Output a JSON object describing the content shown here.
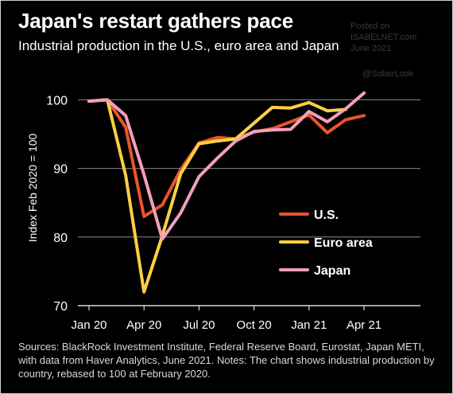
{
  "title": "Japan's restart gathers pace",
  "subtitle": "Industrial production in the U.S., euro area and Japan",
  "watermark": {
    "line1": "Posted on",
    "line2": "ISABELNET.com",
    "line3": "June 2021",
    "handle": "@SoberLook"
  },
  "footnote": "Sources: BlackRock Investment Institute, Federal Reserve Board, Eurostat, Japan METI, with data from Haver Analytics, June 2021. Notes: The chart shows industrial production by country, rebased to 100 at February 2020.",
  "chart_data": {
    "type": "line",
    "title": "Japan's restart gathers pace",
    "subtitle": "Industrial production in the U.S., euro area and Japan",
    "ylabel": "Index Feb 2020 = 100",
    "ylim": [
      70,
      104
    ],
    "yticks": [
      70,
      80,
      90,
      100
    ],
    "grid": true,
    "x": [
      "Jan 20",
      "Feb 20",
      "Mar 20",
      "Apr 20",
      "May 20",
      "Jun 20",
      "Jul 20",
      "Aug 20",
      "Sep 20",
      "Oct 20",
      "Nov 20",
      "Dec 20",
      "Jan 21",
      "Feb 21",
      "Mar 21",
      "Apr 21",
      "May 21"
    ],
    "xticks": [
      "Jan 20",
      "Apr 20",
      "Jul 20",
      "Oct 20",
      "Jan 21",
      "Apr 21"
    ],
    "legend_position": "center-right",
    "series": [
      {
        "name": "U.S.",
        "color": "#e8552a",
        "values": [
          99.8,
          100,
          96,
          83,
          84.7,
          89.8,
          93.7,
          94.5,
          94.3,
          95.3,
          95.8,
          96.8,
          97.8,
          95.2,
          97.1,
          97.7,
          null
        ]
      },
      {
        "name": "Euro area",
        "color": "#fdcf41",
        "values": [
          99.8,
          100,
          89,
          72,
          80.2,
          89.2,
          93.6,
          94.0,
          94.3,
          96.6,
          98.9,
          98.8,
          99.6,
          98.4,
          98.6,
          null,
          null
        ]
      },
      {
        "name": "Japan",
        "color": "#f39fbb",
        "values": [
          99.8,
          100,
          97.7,
          89.1,
          79.7,
          83.5,
          88.8,
          91.5,
          94.0,
          95.4,
          95.6,
          95.7,
          98.3,
          96.8,
          98.7,
          101,
          null
        ]
      }
    ]
  }
}
